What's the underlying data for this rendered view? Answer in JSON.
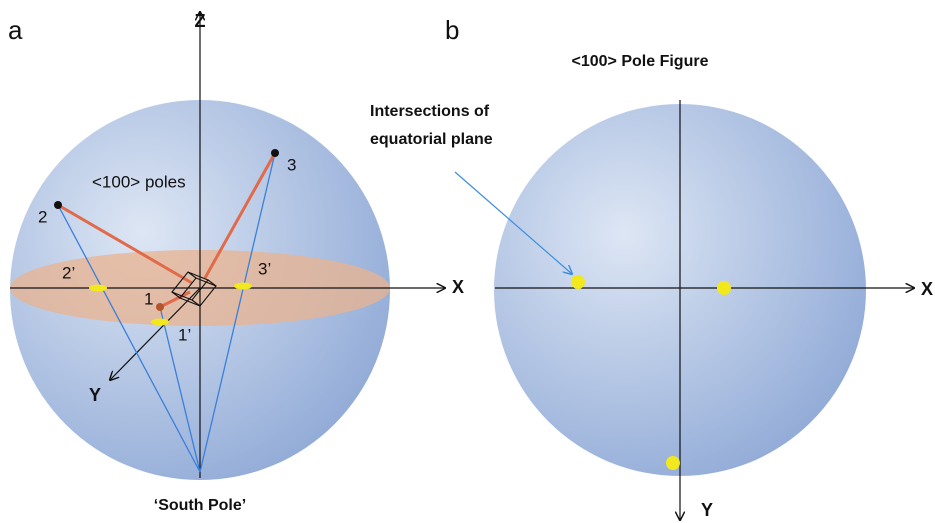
{
  "panels": {
    "a": {
      "label": "a",
      "axes": {
        "z": "Z",
        "x": "X",
        "y": "Y"
      },
      "caption": "<100> poles",
      "poles": [
        "1",
        "2",
        "3"
      ],
      "projections": [
        "1’",
        "2’",
        "3’"
      ],
      "south_pole": "‘South Pole’"
    },
    "b": {
      "label": "b",
      "title": "<100> Pole Figure",
      "annotation": [
        "Intersections of",
        "equatorial plane"
      ],
      "axes": {
        "x": "X",
        "y": "Y"
      }
    }
  }
}
